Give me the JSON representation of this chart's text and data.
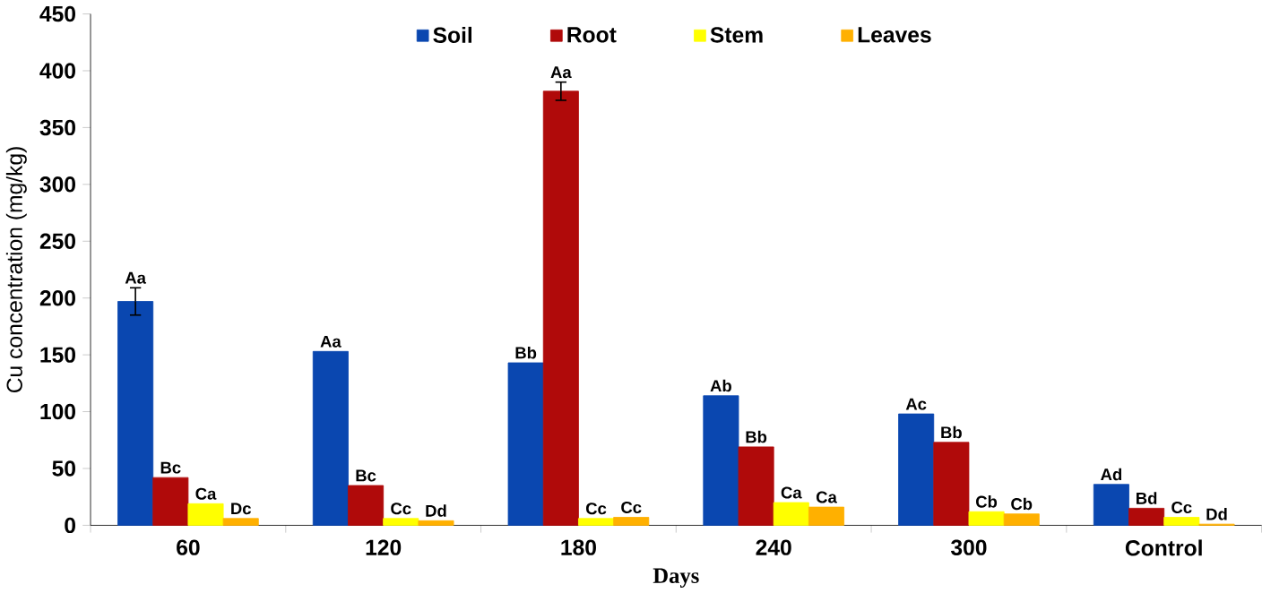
{
  "chart_data": {
    "type": "bar",
    "xlabel": "Days",
    "ylabel": "Cu concentration (mg/kg)",
    "categories": [
      "60",
      "120",
      "180",
      "240",
      "300",
      "Control"
    ],
    "series": [
      {
        "name": "Soil",
        "color": "#0a47b0",
        "values": [
          197,
          153,
          143,
          114,
          98,
          36
        ],
        "errors": [
          12,
          null,
          null,
          null,
          null,
          null
        ]
      },
      {
        "name": "Root",
        "color": "#b00a0a",
        "values": [
          42,
          35,
          382,
          69,
          73,
          15
        ],
        "errors": [
          null,
          null,
          8,
          null,
          null,
          null
        ]
      },
      {
        "name": "Stem",
        "color": "#ffff00",
        "values": [
          19,
          6,
          6,
          20,
          12,
          7
        ]
      },
      {
        "name": "Leaves",
        "color": "#ffb000",
        "values": [
          6,
          4,
          7,
          16,
          10,
          1
        ]
      }
    ],
    "ylim": [
      0,
      450
    ],
    "yticks": [
      0,
      50,
      100,
      150,
      200,
      250,
      300,
      350,
      400,
      450
    ],
    "legend": "top",
    "grid": false,
    "annotations": [
      "Aa",
      "Bc",
      "Ca",
      "Dc",
      "Aa",
      "Bc",
      "Cc",
      "Dd",
      "Bb",
      "Aa",
      "Cc",
      "Cc",
      "Ab",
      "Bb",
      "Ca",
      "Ca",
      "Ac",
      "Bb",
      "Cb",
      "Cb",
      "Ad",
      "Bd",
      "Cc",
      "Dd"
    ]
  }
}
